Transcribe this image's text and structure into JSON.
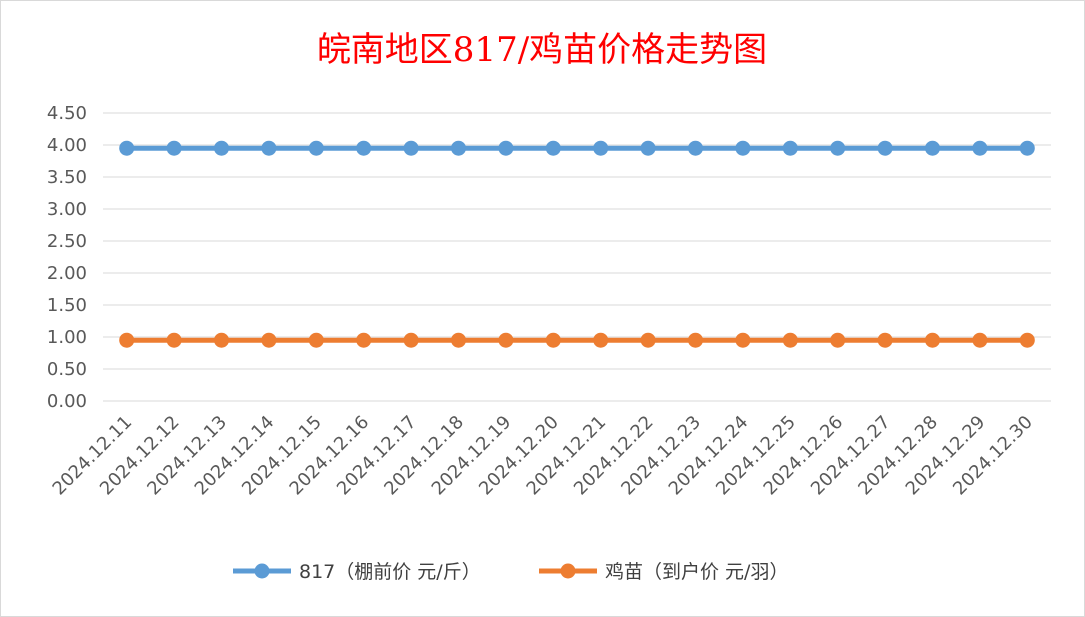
{
  "chart_data": {
    "type": "line",
    "title": "皖南地区817/鸡苗价格走势图",
    "categories": [
      "2024.12.11",
      "2024.12.12",
      "2024.12.13",
      "2024.12.14",
      "2024.12.15",
      "2024.12.16",
      "2024.12.17",
      "2024.12.18",
      "2024.12.19",
      "2024.12.20",
      "2024.12.21",
      "2024.12.22",
      "2024.12.23",
      "2024.12.24",
      "2024.12.25",
      "2024.12.26",
      "2024.12.27",
      "2024.12.28",
      "2024.12.29",
      "2024.12.30"
    ],
    "yticks": [
      "0.00",
      "0.50",
      "1.00",
      "1.50",
      "2.00",
      "2.50",
      "3.00",
      "3.50",
      "4.00",
      "4.50"
    ],
    "ylim": [
      0,
      4.5
    ],
    "grid": true,
    "legend_position": "bottom",
    "series": [
      {
        "name": "817（棚前价 元/斤）",
        "color": "#5b9bd5",
        "values": [
          3.95,
          3.95,
          3.95,
          3.95,
          3.95,
          3.95,
          3.95,
          3.95,
          3.95,
          3.95,
          3.95,
          3.95,
          3.95,
          3.95,
          3.95,
          3.95,
          3.95,
          3.95,
          3.95,
          3.95
        ]
      },
      {
        "name": "鸡苗（到户价 元/羽）",
        "color": "#ed7d31",
        "values": [
          0.95,
          0.95,
          0.95,
          0.95,
          0.95,
          0.95,
          0.95,
          0.95,
          0.95,
          0.95,
          0.95,
          0.95,
          0.95,
          0.95,
          0.95,
          0.95,
          0.95,
          0.95,
          0.95,
          0.95
        ]
      }
    ]
  }
}
